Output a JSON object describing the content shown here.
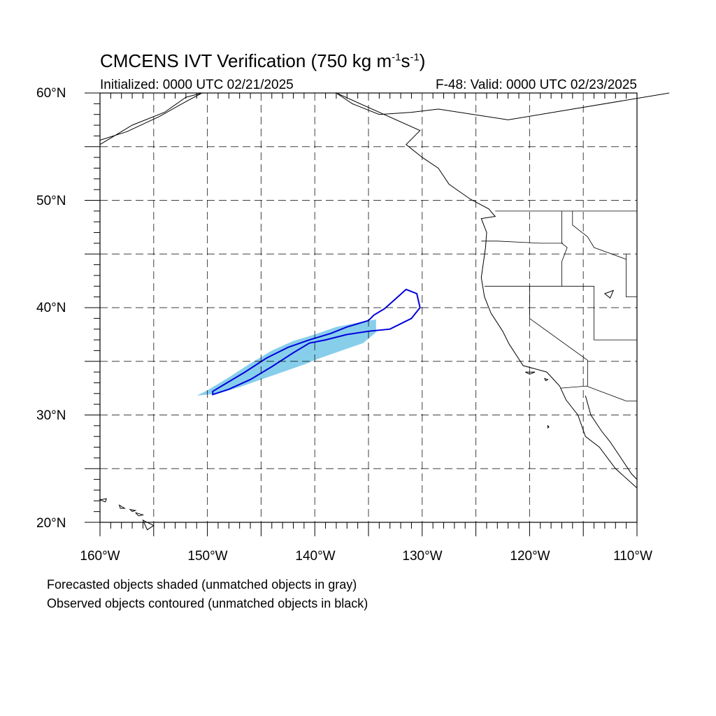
{
  "title": {
    "text": "CMCENS IVT Verification (750 kg m",
    "sup1": "-1",
    "mid": "s",
    "sup2": "-1",
    "end": ")"
  },
  "subtitle_left": "Initialized: 0000 UTC 02/21/2025",
  "subtitle_right": "F-48: Valid: 0000 UTC 02/23/2025",
  "lat_labels": [
    "60°N",
    "50°N",
    "40°N",
    "30°N",
    "20°N"
  ],
  "lon_labels": [
    "160°W",
    "150°W",
    "140°W",
    "130°W",
    "120°W",
    "110°W"
  ],
  "notes": [
    "Forecasted objects shaded (unmatched objects in gray)",
    "Observed objects contoured (unmatched objects in black)"
  ],
  "map": {
    "lat_range": [
      20,
      60
    ],
    "lon_range": [
      -160,
      -110
    ],
    "gridline_step_deg": 5,
    "grid": true,
    "colors": {
      "forecast_shade": "#87ceeb",
      "observed_contour": "#0000dd",
      "coast": "#000000",
      "grid": "#000000"
    },
    "forecast_object": [
      [
        -151.0,
        31.8
      ],
      [
        -149.0,
        32.0
      ],
      [
        -147.0,
        32.6
      ],
      [
        -145.0,
        33.3
      ],
      [
        -143.0,
        34.0
      ],
      [
        -141.0,
        34.7
      ],
      [
        -139.5,
        35.3
      ],
      [
        -137.5,
        36.0
      ],
      [
        -135.5,
        36.7
      ],
      [
        -134.3,
        37.7
      ],
      [
        -134.3,
        38.9
      ],
      [
        -136.0,
        38.6
      ],
      [
        -138.0,
        38.2
      ],
      [
        -140.0,
        37.5
      ],
      [
        -142.0,
        36.9
      ],
      [
        -144.0,
        36.0
      ],
      [
        -146.0,
        34.8
      ],
      [
        -148.0,
        33.5
      ],
      [
        -150.0,
        32.3
      ]
    ],
    "observed_object": [
      [
        -149.5,
        32.2
      ],
      [
        -148.5,
        32.8
      ],
      [
        -146.5,
        34.0
      ],
      [
        -144.5,
        35.3
      ],
      [
        -142.5,
        36.3
      ],
      [
        -140.5,
        37.0
      ],
      [
        -138.5,
        37.6
      ],
      [
        -137.0,
        38.2
      ],
      [
        -135.0,
        38.8
      ],
      [
        -134.5,
        39.3
      ],
      [
        -133.5,
        39.9
      ],
      [
        -132.5,
        40.8
      ],
      [
        -131.5,
        41.7
      ],
      [
        -130.5,
        41.3
      ],
      [
        -130.2,
        40.0
      ],
      [
        -131.0,
        39.0
      ],
      [
        -133.0,
        38.0
      ],
      [
        -135.0,
        37.8
      ],
      [
        -137.0,
        37.5
      ],
      [
        -139.0,
        37.0
      ],
      [
        -140.5,
        36.7
      ],
      [
        -142.0,
        35.8
      ],
      [
        -144.0,
        34.5
      ],
      [
        -146.0,
        33.3
      ],
      [
        -148.0,
        32.4
      ],
      [
        -149.5,
        31.9
      ]
    ],
    "coastline_na": [
      [
        -107,
        60
      ],
      [
        -122,
        57.5
      ],
      [
        -128.5,
        58.5
      ],
      [
        -131,
        58.2
      ],
      [
        -134,
        58
      ],
      [
        -136.5,
        59
      ],
      [
        -138,
        60
      ],
      [
        -130.2,
        56.5
      ],
      [
        -131.5,
        55.2
      ],
      [
        -130,
        54
      ],
      [
        -128.5,
        53
      ],
      [
        -127.5,
        51.5
      ],
      [
        -125.5,
        50.1
      ],
      [
        -123.8,
        49.2
      ],
      [
        -123.2,
        48.5
      ],
      [
        -124.5,
        48.3
      ],
      [
        -124,
        47
      ],
      [
        -124.1,
        45.6
      ],
      [
        -124.5,
        42.8
      ],
      [
        -124.2,
        41
      ],
      [
        -123.6,
        39.5
      ],
      [
        -122.5,
        37.8
      ],
      [
        -121.9,
        36.6
      ],
      [
        -120.6,
        34.6
      ],
      [
        -118.4,
        34
      ],
      [
        -117.2,
        32.7
      ],
      [
        -116.6,
        31.4
      ],
      [
        -115.5,
        30
      ],
      [
        -114.8,
        28
      ],
      [
        -113.5,
        27
      ],
      [
        -112,
        25
      ],
      [
        -110,
        23.2
      ]
    ],
    "coastline_ak": [
      [
        -160,
        55.2
      ],
      [
        -157,
        57
      ],
      [
        -154,
        58.2
      ],
      [
        -152,
        59.6
      ],
      [
        -150.5,
        60
      ],
      [
        -152,
        59.2
      ],
      [
        -154.5,
        57.8
      ],
      [
        -157.5,
        56.4
      ],
      [
        -160,
        55.6
      ]
    ],
    "baja_east_coast": [
      [
        -114.8,
        31.8
      ],
      [
        -114.3,
        30
      ],
      [
        -113.3,
        28.5
      ],
      [
        -112.5,
        27.5
      ],
      [
        -111.5,
        26
      ],
      [
        -110.5,
        24.5
      ],
      [
        -110,
        24
      ]
    ],
    "borders": [
      [
        [
          -123.2,
          49
        ],
        [
          -110,
          49
        ]
      ],
      [
        [
          -117,
          49
        ],
        [
          -117,
          46
        ],
        [
          -116.5,
          45.6
        ],
        [
          -117,
          44.3
        ],
        [
          -117,
          42
        ]
      ],
      [
        [
          -124.2,
          42
        ],
        [
          -114,
          42
        ]
      ],
      [
        [
          -120,
          42
        ],
        [
          -120,
          39
        ],
        [
          -114.6,
          35.1
        ],
        [
          -114.6,
          32.7
        ]
      ],
      [
        [
          -111,
          45
        ],
        [
          -111,
          41
        ],
        [
          -110,
          41
        ]
      ],
      [
        [
          -114,
          42
        ],
        [
          -114,
          37
        ],
        [
          -110,
          37
        ]
      ],
      [
        [
          -117.1,
          32.5
        ],
        [
          -114.7,
          32.7
        ],
        [
          -111,
          31.3
        ],
        [
          -110,
          31.3
        ]
      ],
      [
        [
          -116,
          49
        ],
        [
          -116,
          47.7
        ],
        [
          -114.6,
          46.6
        ],
        [
          -114,
          45.6
        ],
        [
          -111,
          44.5
        ]
      ],
      [
        [
          -124.5,
          46.2
        ],
        [
          -123,
          46.2
        ],
        [
          -119,
          46
        ],
        [
          -116.9,
          46
        ]
      ]
    ],
    "islands": [
      [
        [
          -160,
          22.1
        ],
        [
          -159.4,
          22.2
        ],
        [
          -159.5,
          21.9
        ],
        [
          -160,
          22.1
        ]
      ],
      [
        [
          -158.2,
          21.6
        ],
        [
          -157.7,
          21.3
        ],
        [
          -158.1,
          21.3
        ],
        [
          -158.2,
          21.6
        ]
      ],
      [
        [
          -157.2,
          21.2
        ],
        [
          -156.7,
          21.1
        ],
        [
          -157,
          21
        ],
        [
          -157.2,
          21.2
        ]
      ],
      [
        [
          -156.7,
          20.9
        ],
        [
          -156,
          20.7
        ],
        [
          -156.4,
          20.6
        ],
        [
          -156.7,
          20.9
        ]
      ],
      [
        [
          -156,
          20.2
        ],
        [
          -155,
          19.7
        ],
        [
          -155.6,
          19.3
        ],
        [
          -156,
          20.2
        ]
      ],
      [
        [
          -113.0,
          41.3
        ],
        [
          -112.2,
          41.6
        ],
        [
          -112.5,
          40.9
        ],
        [
          -113.0,
          41.3
        ]
      ],
      [
        [
          -120.4,
          34.0
        ],
        [
          -119.5,
          34.0
        ],
        [
          -120,
          33.8
        ],
        [
          -120.4,
          34.0
        ]
      ],
      [
        [
          -118.6,
          33.4
        ],
        [
          -118.3,
          33.3
        ],
        [
          -118.5,
          33.2
        ],
        [
          -118.6,
          33.4
        ]
      ],
      [
        [
          -118.3,
          29.0
        ],
        [
          -118.2,
          28.9
        ],
        [
          -118.3,
          28.8
        ],
        [
          -118.3,
          29.0
        ]
      ]
    ]
  }
}
